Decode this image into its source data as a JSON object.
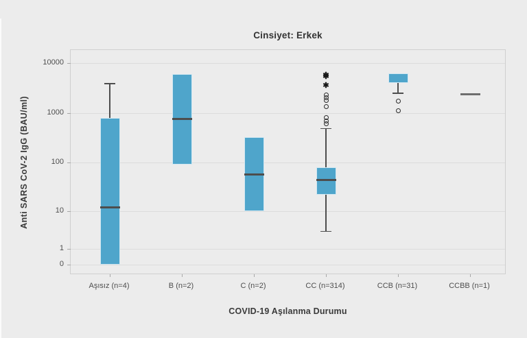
{
  "page": {
    "background_color": "#ECECEC",
    "left_strip_color": "#FBFBFB"
  },
  "chart_data": {
    "type": "boxplot",
    "title": "Cinsiyet: Erkek",
    "xlabel": "COVID-19 Aşılanma Durumu",
    "ylabel": "Anti SARS CoV-2 IgG (BAU/ml)",
    "legend": "none",
    "grid": "horizontal",
    "yscale": "log decades 1-10000 with 0 floor",
    "ylim": [
      0,
      10000
    ],
    "ytick_labels": [
      "10000",
      "1000",
      "100",
      "10",
      "1",
      "0"
    ],
    "ytick_values": [
      10000,
      1000,
      100,
      10,
      1,
      0
    ],
    "categories": [
      "Aşısız (n=4)",
      "B (n=2)",
      "C (n=2)",
      "CC (n=314)",
      "CCB (n=31)",
      "CCBB (n=1)"
    ],
    "boxes": [
      {
        "category": "Aşısız (n=4)",
        "n": 4,
        "whisker_low": null,
        "q1": 0,
        "median": 12,
        "q3": 800,
        "whisker_high": 4000,
        "outliers": [],
        "extremes": []
      },
      {
        "category": "B (n=2)",
        "n": 2,
        "whisker_low": null,
        "q1": 90,
        "median": 770,
        "q3": 6000,
        "whisker_high": null,
        "outliers": [],
        "extremes": []
      },
      {
        "category": "C (n=2)",
        "n": 2,
        "whisker_low": null,
        "q1": 10,
        "median": 57,
        "q3": 330,
        "whisker_high": null,
        "outliers": [],
        "extremes": []
      },
      {
        "category": "CC (n=314)",
        "n": 314,
        "whisker_low": 3,
        "q1": 22,
        "median": 44,
        "q3": 80,
        "whisker_high": 500,
        "outliers": [
          2300,
          2050,
          1800,
          1370,
          810,
          700,
          615
        ],
        "extremes": [
          5600,
          5300,
          3500
        ]
      },
      {
        "category": "CCB (n=31)",
        "n": 31,
        "whisker_low": 2550,
        "q1": 4000,
        "median": 4000,
        "q3": 6300,
        "whisker_high": null,
        "outliers": [
          1750,
          1130
        ],
        "extremes": []
      },
      {
        "category": "CCBB (n=1)",
        "n": 1,
        "whisker_low": null,
        "q1": null,
        "median": 2400,
        "q3": null,
        "whisker_high": null,
        "outliers": [],
        "extremes": []
      }
    ],
    "colors": {
      "box_fill": "#4FA5CB",
      "median_line": "#4D4D4D",
      "whisker": "#4D4D4D",
      "outlier_stroke": "#2B2B2B",
      "gridline": "#DCDCDC",
      "frame": "#CFCFCF",
      "tick_text": "#4D4D4D",
      "title_text": "#333333"
    }
  }
}
